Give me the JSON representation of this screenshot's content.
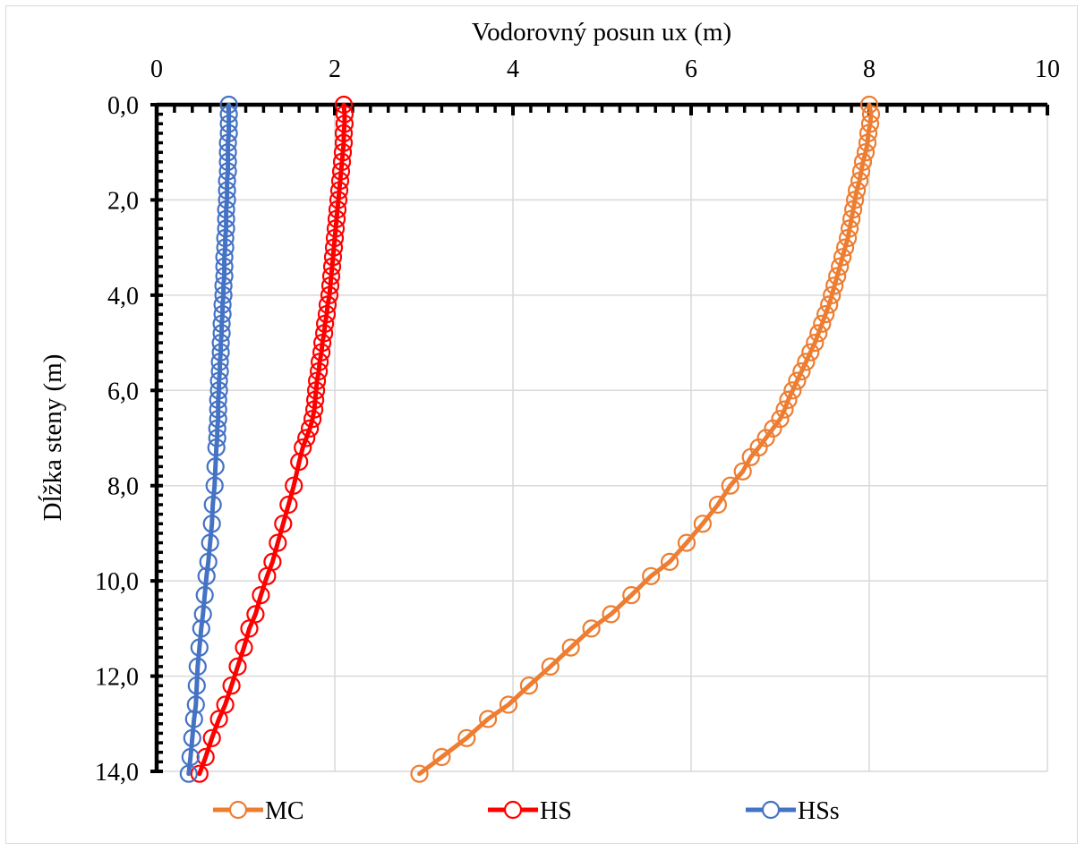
{
  "chart_data": {
    "type": "line",
    "xlabel": "Vodorovný  posun ux (m)",
    "ylabel": "Dĺžka steny (m)",
    "xlim": [
      0,
      10
    ],
    "ylim": [
      0,
      14
    ],
    "y_inverted": true,
    "x_axis_position": "top",
    "x_ticks": [
      "0",
      "2",
      "4",
      "6",
      "8",
      "10"
    ],
    "y_ticks": [
      "0,0",
      "2,0",
      "4,0",
      "6,0",
      "8,0",
      "10,0",
      "12,0",
      "14,0"
    ],
    "grid": true,
    "legend_position": "bottom",
    "series": [
      {
        "name": "MC",
        "color": "#ED7D31",
        "points": [
          [
            8.0,
            0.0
          ],
          [
            8.02,
            0.2
          ],
          [
            8.01,
            0.4
          ],
          [
            7.99,
            0.6
          ],
          [
            7.98,
            0.8
          ],
          [
            7.96,
            1.0
          ],
          [
            7.93,
            1.2
          ],
          [
            7.91,
            1.4
          ],
          [
            7.89,
            1.6
          ],
          [
            7.86,
            1.8
          ],
          [
            7.84,
            2.0
          ],
          [
            7.82,
            2.2
          ],
          [
            7.8,
            2.4
          ],
          [
            7.78,
            2.6
          ],
          [
            7.76,
            2.8
          ],
          [
            7.73,
            3.0
          ],
          [
            7.7,
            3.2
          ],
          [
            7.67,
            3.4
          ],
          [
            7.64,
            3.6
          ],
          [
            7.61,
            3.8
          ],
          [
            7.58,
            4.0
          ],
          [
            7.55,
            4.2
          ],
          [
            7.51,
            4.4
          ],
          [
            7.47,
            4.6
          ],
          [
            7.43,
            4.8
          ],
          [
            7.39,
            5.0
          ],
          [
            7.34,
            5.2
          ],
          [
            7.29,
            5.4
          ],
          [
            7.24,
            5.6
          ],
          [
            7.19,
            5.8
          ],
          [
            7.14,
            6.0
          ],
          [
            7.09,
            6.2
          ],
          [
            7.05,
            6.4
          ],
          [
            7.0,
            6.6
          ],
          [
            6.92,
            6.8
          ],
          [
            6.84,
            7.0
          ],
          [
            6.76,
            7.2
          ],
          [
            6.67,
            7.4
          ],
          [
            6.58,
            7.7
          ],
          [
            6.44,
            8.0
          ],
          [
            6.3,
            8.4
          ],
          [
            6.13,
            8.8
          ],
          [
            5.95,
            9.2
          ],
          [
            5.76,
            9.6
          ],
          [
            5.55,
            9.9
          ],
          [
            5.33,
            10.3
          ],
          [
            5.1,
            10.7
          ],
          [
            4.88,
            11.0
          ],
          [
            4.65,
            11.4
          ],
          [
            4.42,
            11.8
          ],
          [
            4.18,
            12.2
          ],
          [
            3.95,
            12.6
          ],
          [
            3.72,
            12.9
          ],
          [
            3.48,
            13.3
          ],
          [
            3.2,
            13.7
          ],
          [
            2.95,
            14.05
          ]
        ]
      },
      {
        "name": "HS",
        "color": "#FF0000",
        "points": [
          [
            2.1,
            0.0
          ],
          [
            2.11,
            0.2
          ],
          [
            2.11,
            0.4
          ],
          [
            2.1,
            0.6
          ],
          [
            2.1,
            0.8
          ],
          [
            2.09,
            1.0
          ],
          [
            2.08,
            1.2
          ],
          [
            2.07,
            1.4
          ],
          [
            2.06,
            1.6
          ],
          [
            2.05,
            1.8
          ],
          [
            2.04,
            2.0
          ],
          [
            2.03,
            2.2
          ],
          [
            2.02,
            2.4
          ],
          [
            2.01,
            2.6
          ],
          [
            2.0,
            2.8
          ],
          [
            1.99,
            3.0
          ],
          [
            1.98,
            3.2
          ],
          [
            1.97,
            3.4
          ],
          [
            1.96,
            3.6
          ],
          [
            1.95,
            3.8
          ],
          [
            1.94,
            4.0
          ],
          [
            1.92,
            4.2
          ],
          [
            1.91,
            4.4
          ],
          [
            1.89,
            4.6
          ],
          [
            1.88,
            4.8
          ],
          [
            1.86,
            5.0
          ],
          [
            1.85,
            5.2
          ],
          [
            1.83,
            5.4
          ],
          [
            1.82,
            5.6
          ],
          [
            1.8,
            5.8
          ],
          [
            1.79,
            6.0
          ],
          [
            1.78,
            6.2
          ],
          [
            1.77,
            6.4
          ],
          [
            1.75,
            6.6
          ],
          [
            1.72,
            6.8
          ],
          [
            1.68,
            7.0
          ],
          [
            1.64,
            7.2
          ],
          [
            1.6,
            7.5
          ],
          [
            1.54,
            8.0
          ],
          [
            1.48,
            8.4
          ],
          [
            1.42,
            8.8
          ],
          [
            1.36,
            9.2
          ],
          [
            1.3,
            9.6
          ],
          [
            1.24,
            9.9
          ],
          [
            1.17,
            10.3
          ],
          [
            1.11,
            10.7
          ],
          [
            1.04,
            11.0
          ],
          [
            0.98,
            11.4
          ],
          [
            0.91,
            11.8
          ],
          [
            0.84,
            12.2
          ],
          [
            0.77,
            12.6
          ],
          [
            0.7,
            12.9
          ],
          [
            0.62,
            13.3
          ],
          [
            0.55,
            13.7
          ],
          [
            0.48,
            14.05
          ]
        ]
      },
      {
        "name": "HSs",
        "color": "#4472C4",
        "points": [
          [
            0.81,
            0.0
          ],
          [
            0.81,
            0.2
          ],
          [
            0.81,
            0.4
          ],
          [
            0.81,
            0.6
          ],
          [
            0.8,
            0.8
          ],
          [
            0.8,
            1.0
          ],
          [
            0.8,
            1.2
          ],
          [
            0.8,
            1.4
          ],
          [
            0.79,
            1.6
          ],
          [
            0.79,
            1.8
          ],
          [
            0.79,
            2.0
          ],
          [
            0.78,
            2.2
          ],
          [
            0.78,
            2.4
          ],
          [
            0.78,
            2.6
          ],
          [
            0.77,
            2.8
          ],
          [
            0.77,
            3.0
          ],
          [
            0.76,
            3.2
          ],
          [
            0.76,
            3.4
          ],
          [
            0.76,
            3.6
          ],
          [
            0.75,
            3.8
          ],
          [
            0.75,
            4.0
          ],
          [
            0.74,
            4.2
          ],
          [
            0.74,
            4.4
          ],
          [
            0.73,
            4.6
          ],
          [
            0.73,
            4.8
          ],
          [
            0.72,
            5.0
          ],
          [
            0.72,
            5.2
          ],
          [
            0.71,
            5.4
          ],
          [
            0.71,
            5.6
          ],
          [
            0.7,
            5.8
          ],
          [
            0.7,
            6.0
          ],
          [
            0.69,
            6.2
          ],
          [
            0.69,
            6.4
          ],
          [
            0.69,
            6.6
          ],
          [
            0.68,
            6.8
          ],
          [
            0.68,
            7.0
          ],
          [
            0.67,
            7.2
          ],
          [
            0.66,
            7.6
          ],
          [
            0.65,
            8.0
          ],
          [
            0.63,
            8.4
          ],
          [
            0.62,
            8.8
          ],
          [
            0.6,
            9.2
          ],
          [
            0.58,
            9.6
          ],
          [
            0.56,
            9.9
          ],
          [
            0.54,
            10.3
          ],
          [
            0.52,
            10.7
          ],
          [
            0.5,
            11.0
          ],
          [
            0.48,
            11.4
          ],
          [
            0.46,
            11.8
          ],
          [
            0.45,
            12.2
          ],
          [
            0.44,
            12.6
          ],
          [
            0.42,
            12.9
          ],
          [
            0.4,
            13.3
          ],
          [
            0.38,
            13.7
          ],
          [
            0.36,
            14.05
          ]
        ]
      }
    ]
  }
}
